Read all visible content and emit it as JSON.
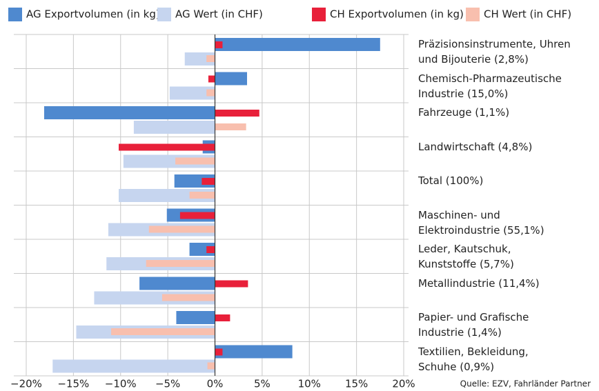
{
  "chart_data": {
    "type": "bar",
    "orientation": "horizontal",
    "categories": [
      "Präzisionsinstrumente, Uhren\nund Bijouterie (2,8%)",
      "Chemisch-Pharmazeutische\nIndustrie (15,0%)",
      "Fahrzeuge (1,1%)",
      "Landwirtschaft (4,8%)",
      "Total (100%)",
      "Maschinen- und\nElektroindustrie (55,1%)",
      "Leder, Kautschuk,\nKunststoffe (5,7%)",
      "Metallindustrie (11,4%)",
      "Papier- und Grafische\nIndustrie (1,4%)",
      "Textilien, Bekleidung,\nSchuhe (0,9%)"
    ],
    "series": [
      {
        "name": "AG Exportvolumen (in kg)",
        "color": "#4f89cf",
        "values": [
          17.5,
          3.4,
          -18.1,
          -1.3,
          -4.3,
          -5.1,
          -2.7,
          -8.0,
          -4.1,
          8.2
        ]
      },
      {
        "name": "AG Wert (in CHF)",
        "color": "#c6d5ef",
        "values": [
          -3.2,
          -4.8,
          -8.6,
          -9.7,
          -10.2,
          -11.3,
          -11.5,
          -12.8,
          -14.7,
          -17.2
        ]
      },
      {
        "name": "CH Exportvolumen (in kg)",
        "color": "#e8203a",
        "values": [
          0.8,
          -0.7,
          4.7,
          -10.2,
          -1.4,
          -3.7,
          -0.9,
          3.5,
          1.6,
          0.8
        ]
      },
      {
        "name": "CH Wert (in CHF)",
        "color": "#f8bfae",
        "values": [
          -0.9,
          -0.9,
          3.3,
          -4.2,
          -2.7,
          -7.0,
          -7.3,
          -5.6,
          -11.0,
          -0.8
        ]
      }
    ],
    "xlim": [
      -20,
      20
    ],
    "xticks": [
      {
        "value": -20,
        "label": "−20%"
      },
      {
        "value": -15,
        "label": "−15%"
      },
      {
        "value": -10,
        "label": "−10%"
      },
      {
        "value": -5,
        "label": "−5%"
      },
      {
        "value": 0,
        "label": "0%"
      },
      {
        "value": 5,
        "label": "5%"
      },
      {
        "value": 10,
        "label": "10%"
      },
      {
        "value": 15,
        "label": "15%"
      },
      {
        "value": 20,
        "label": "20%"
      }
    ],
    "grid": true,
    "source": "Quelle: EZV, Fahrländer Partner"
  }
}
